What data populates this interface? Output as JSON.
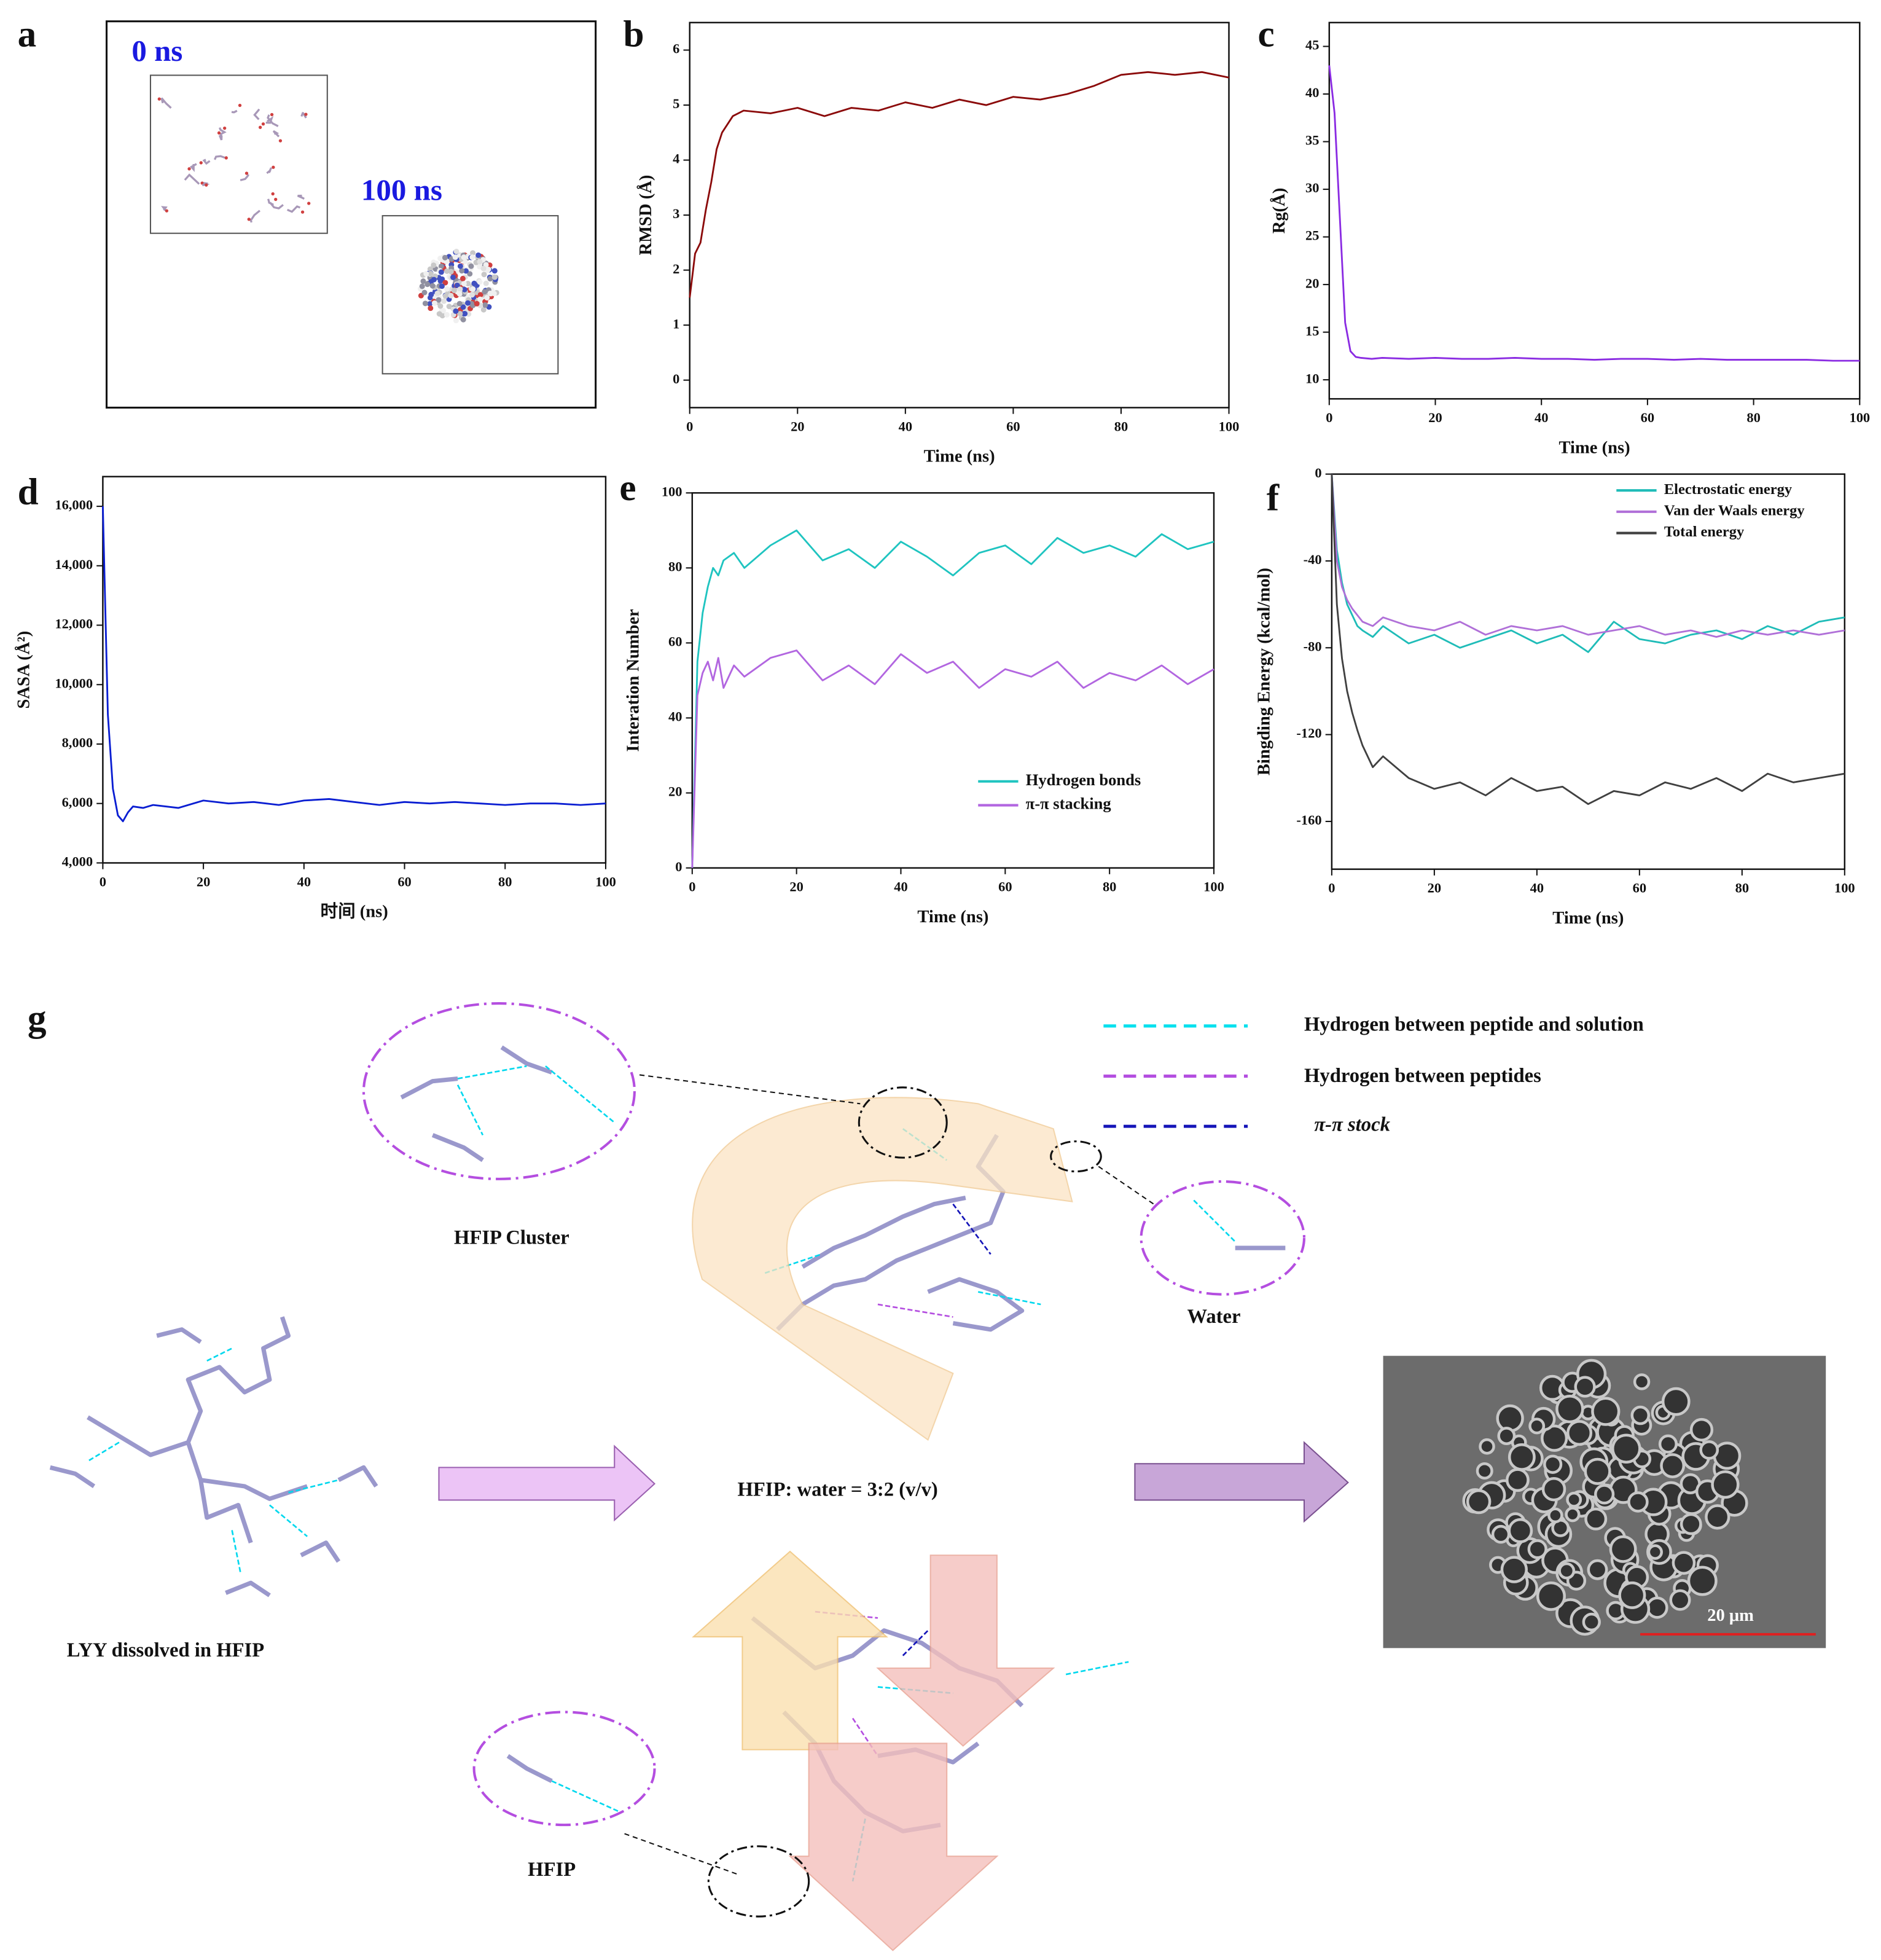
{
  "panel_labels": [
    "a",
    "b",
    "c",
    "d",
    "e",
    "f",
    "g"
  ],
  "panel_a": {
    "labels": [
      "0 ns",
      "100 ns"
    ]
  },
  "chart_data": [
    {
      "type": "line",
      "x_label": "Time (ns)",
      "y_label": "RMSD (Å)",
      "color": "#8b0a0a",
      "x": [
        0,
        1,
        2,
        3,
        4,
        5,
        6,
        8,
        10,
        15,
        20,
        25,
        30,
        35,
        40,
        45,
        50,
        55,
        60,
        65,
        70,
        75,
        80,
        85,
        90,
        95,
        100
      ],
      "values": [
        1.5,
        2.3,
        2.5,
        3.1,
        3.6,
        4.2,
        4.5,
        4.8,
        4.9,
        4.85,
        4.95,
        4.8,
        4.95,
        4.9,
        5.05,
        4.95,
        5.1,
        5.0,
        5.15,
        5.1,
        5.2,
        5.35,
        5.55,
        5.6,
        5.55,
        5.6,
        5.5
      ],
      "xlim": [
        0,
        100
      ],
      "xticks": [
        0,
        20,
        40,
        60,
        80,
        100
      ],
      "ylim": [
        -0.5,
        6.5
      ],
      "yticks": [
        0,
        1,
        2,
        3,
        4,
        5,
        6
      ]
    },
    {
      "type": "line",
      "x_label": "Time (ns)",
      "y_label": "Rg(Å)",
      "color": "#8a2be2",
      "x": [
        0,
        1,
        2,
        3,
        4,
        5,
        6,
        8,
        10,
        15,
        20,
        25,
        30,
        35,
        40,
        45,
        50,
        55,
        60,
        65,
        70,
        75,
        80,
        85,
        90,
        95,
        100
      ],
      "values": [
        43,
        38,
        27,
        16,
        13,
        12.4,
        12.3,
        12.2,
        12.3,
        12.2,
        12.3,
        12.2,
        12.2,
        12.3,
        12.2,
        12.2,
        12.1,
        12.2,
        12.2,
        12.1,
        12.2,
        12.1,
        12.1,
        12.1,
        12.1,
        12.0,
        12.0
      ],
      "xlim": [
        0,
        100
      ],
      "xticks": [
        0,
        20,
        40,
        60,
        80,
        100
      ],
      "ylim": [
        8,
        47.5
      ],
      "yticks": [
        10,
        15,
        20,
        25,
        30,
        35,
        40,
        45
      ]
    },
    {
      "type": "line",
      "x_label": "时间 (ns)",
      "y_label": "SASA (Å²)",
      "color": "#0a1ed2",
      "x": [
        0,
        1,
        2,
        3,
        4,
        5,
        6,
        8,
        10,
        15,
        20,
        25,
        30,
        35,
        40,
        45,
        50,
        55,
        60,
        65,
        70,
        75,
        80,
        85,
        90,
        95,
        100
      ],
      "values": [
        16000,
        9000,
        6500,
        5600,
        5400,
        5700,
        5900,
        5850,
        5950,
        5850,
        6100,
        6000,
        6050,
        5950,
        6100,
        6150,
        6050,
        5950,
        6050,
        6000,
        6050,
        6000,
        5950,
        6000,
        6000,
        5950,
        6000
      ],
      "xlim": [
        0,
        100
      ],
      "xticks": [
        0,
        20,
        40,
        60,
        80,
        100
      ],
      "ylim": [
        4000,
        17000
      ],
      "yticks": [
        {
          "value": 4000,
          "label": "4,000"
        },
        {
          "value": 6000,
          "label": "6,000"
        },
        {
          "value": 8000,
          "label": "8,000"
        },
        {
          "value": 10000,
          "label": "10,000"
        },
        {
          "value": 12000,
          "label": "12,000"
        },
        {
          "value": 14000,
          "label": "14,000"
        },
        {
          "value": 16000,
          "label": "16,000"
        }
      ]
    },
    {
      "type": "line",
      "x_label": "Time (ns)",
      "y_label": "Interation Number",
      "legend": "lower right",
      "x": [
        0,
        1,
        2,
        3,
        4,
        5,
        6,
        8,
        10,
        15,
        20,
        25,
        30,
        35,
        40,
        45,
        50,
        55,
        60,
        65,
        70,
        75,
        80,
        85,
        90,
        95,
        100
      ],
      "series": [
        {
          "name": "Hydrogen bonds",
          "color": "#1fc4c0",
          "values": [
            0,
            55,
            68,
            75,
            80,
            78,
            82,
            84,
            80,
            86,
            90,
            82,
            85,
            80,
            87,
            83,
            78,
            84,
            86,
            81,
            88,
            84,
            86,
            83,
            89,
            85,
            87
          ]
        },
        {
          "name": "π-π stacking",
          "color": "#b266e0",
          "values": [
            0,
            46,
            52,
            55,
            50,
            56,
            48,
            54,
            51,
            56,
            58,
            50,
            54,
            49,
            57,
            52,
            55,
            48,
            53,
            51,
            55,
            48,
            52,
            50,
            54,
            49,
            53
          ]
        }
      ],
      "xlim": [
        0,
        100
      ],
      "xticks": [
        0,
        20,
        40,
        60,
        80,
        100
      ],
      "ylim": [
        0,
        100
      ],
      "yticks": [
        0,
        20,
        40,
        60,
        80,
        100
      ]
    },
    {
      "type": "line",
      "x_label": "Time (ns)",
      "y_label": "Bingding Energy (kcal/mol)",
      "legend": "upper right",
      "x": [
        0,
        1,
        2,
        3,
        4,
        5,
        6,
        8,
        10,
        15,
        20,
        25,
        30,
        35,
        40,
        45,
        50,
        55,
        60,
        65,
        70,
        75,
        80,
        85,
        90,
        95,
        100
      ],
      "series": [
        {
          "name": "Electrostatic energy",
          "color": "#1fbcb8",
          "values": [
            0,
            -35,
            -50,
            -60,
            -65,
            -70,
            -72,
            -75,
            -70,
            -78,
            -74,
            -80,
            -76,
            -72,
            -78,
            -74,
            -82,
            -68,
            -76,
            -78,
            -74,
            -72,
            -76,
            -70,
            -74,
            -68,
            -66
          ]
        },
        {
          "name": "Van der Waals energy",
          "color": "#b070d8",
          "values": [
            0,
            -40,
            -52,
            -58,
            -62,
            -65,
            -68,
            -70,
            -66,
            -70,
            -72,
            -68,
            -74,
            -70,
            -72,
            -70,
            -74,
            -72,
            -70,
            -74,
            -72,
            -75,
            -72,
            -74,
            -72,
            -74,
            -72
          ]
        },
        {
          "name": "Total energy",
          "color": "#404040",
          "values": [
            0,
            -60,
            -85,
            -100,
            -110,
            -118,
            -125,
            -135,
            -130,
            -140,
            -145,
            -142,
            -148,
            -140,
            -146,
            -144,
            -152,
            -146,
            -148,
            -142,
            -145,
            -140,
            -146,
            -138,
            -142,
            -140,
            -138
          ]
        }
      ],
      "xlim": [
        0,
        100
      ],
      "xticks": [
        0,
        20,
        40,
        60,
        80,
        100
      ],
      "ylim": [
        -182,
        0
      ],
      "yticks": [
        -160,
        -120,
        -80,
        -40,
        0
      ]
    }
  ],
  "panel_g": {
    "legend": [
      "Hydrogen  between peptide and solution",
      "Hydrogen between peptides",
      "π-π stock"
    ],
    "labels": {
      "cluster": "HFIP Cluster",
      "water": "Water",
      "lyy": "LYY dissolved in HFIP",
      "ratio": "HFIP: water = 3:2 (v/v)",
      "hfip": "HFIP"
    },
    "scale_bar": "20 μm"
  }
}
